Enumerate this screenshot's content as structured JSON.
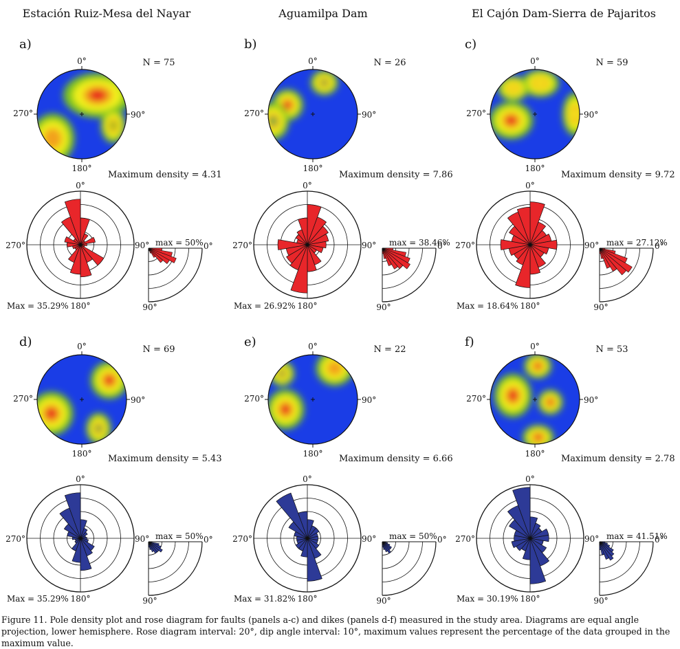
{
  "column_titles": [
    "Estación Ruiz-Mesa del Nayar",
    "Aguamilpa Dam",
    "El Cajón Dam-Sierra de Pajaritos"
  ],
  "caption": "Figure 11. Pole density plot and rose diagram for faults (panels a-c) and dikes (panels d-f) measured in the study area. Diagrams are equal angle projection, lower hemisphere. Rose diagram interval: 20°, dip angle interval: 10°, maximum values represent the percentage of the data grouped in the maximum value.",
  "colors": {
    "fault_rose": "#e8262a",
    "dike_rose": "#2d3a97",
    "density_low": "#1a3de6",
    "density_mid": "#7ac41e",
    "density_high": "#f2f21a",
    "density_max": "#e81c1c"
  },
  "direction_labels": {
    "n": "0°",
    "e": "90°",
    "s": "180°",
    "w": "270°"
  },
  "panels": [
    {
      "label": "a)",
      "n": "N = 75",
      "max_density": "Maximum density = 4.31",
      "rose_max": "Max = 35.29%",
      "dip_max": "max = 50%",
      "kind": "fault",
      "blobs": [
        [
          40,
          -0.55,
          0.55,
          0.36,
          "#e81c1c"
        ],
        [
          -130,
          -0.85,
          0.35,
          0.4,
          "#f2a21a"
        ],
        [
          110,
          -0.75,
          0.2,
          0.28,
          "#7ac41e"
        ]
      ],
      "rose": [
        0.5,
        0.22,
        0.1,
        0.28,
        0.12,
        0.08,
        0.5,
        0.35,
        0.6,
        0.55,
        0.35,
        0.12,
        0.15,
        0.25,
        0.3,
        0.15,
        0.55,
        0.85
      ],
      "dips": [
        0.25,
        0.45,
        0.55,
        0.45,
        0.35,
        0.2,
        0.1,
        0.05,
        0.02
      ]
    },
    {
      "label": "b)",
      "n": "N = 26",
      "max_density": "Maximum density = 7.86",
      "rose_max": "Max = 26.92%",
      "dip_max": "max = 38.46%",
      "kind": "fault",
      "blobs": [
        [
          -70,
          -0.6,
          0.25,
          0.25,
          "#e81c1c"
        ],
        [
          20,
          -0.75,
          0.22,
          0.2,
          "#3cb43c"
        ],
        [
          -100,
          -0.9,
          0.25,
          0.3,
          "#3cb43c"
        ]
      ],
      "rose": [
        0.75,
        0.55,
        0.45,
        0.4,
        0.35,
        0.3,
        0.2,
        0.4,
        0.5,
        0.9,
        0.5,
        0.45,
        0.4,
        0.55,
        0.2,
        0.25,
        0.3,
        0.5
      ],
      "dips": [
        0.2,
        0.45,
        0.55,
        0.6,
        0.5,
        0.45,
        0.35,
        0.2,
        0.1
      ]
    },
    {
      "label": "c)",
      "n": "N = 59",
      "max_density": "Maximum density = 9.72",
      "rose_max": "Max = 18.64%",
      "dip_max": "max = 27.12%",
      "kind": "fault",
      "blobs": [
        [
          -105,
          -0.55,
          0.35,
          0.3,
          "#e81c1c"
        ],
        [
          90,
          -0.9,
          0.2,
          0.35,
          "#f2f21a"
        ],
        [
          10,
          -0.7,
          0.3,
          0.22,
          "#f2f21a"
        ],
        [
          -40,
          -0.75,
          0.25,
          0.2,
          "#f2f21a"
        ]
      ],
      "rose": [
        0.8,
        0.45,
        0.35,
        0.4,
        0.5,
        0.35,
        0.3,
        0.45,
        0.55,
        0.8,
        0.4,
        0.35,
        0.4,
        0.55,
        0.35,
        0.45,
        0.65,
        0.7
      ],
      "dips": [
        0.1,
        0.3,
        0.55,
        0.7,
        0.65,
        0.5,
        0.4,
        0.2,
        0.1
      ]
    },
    {
      "label": "d)",
      "n": "N = 69",
      "max_density": "Maximum density = 5.43",
      "rose_max": "Max = 35.29%",
      "dip_max": "max = 50%",
      "kind": "dike",
      "blobs": [
        [
          55,
          -0.75,
          0.3,
          0.3,
          "#e81c1c"
        ],
        [
          -115,
          -0.75,
          0.35,
          0.35,
          "#e81c1c"
        ],
        [
          150,
          -0.75,
          0.2,
          0.25,
          "#3cb43c"
        ]
      ],
      "rose": [
        0.35,
        0.2,
        0.15,
        0.1,
        0.12,
        0.15,
        0.3,
        0.35,
        0.6,
        0.45,
        0.25,
        0.12,
        0.1,
        0.15,
        0.25,
        0.35,
        0.6,
        0.85
      ],
      "dips": [
        0.05,
        0.2,
        0.25,
        0.3,
        0.25,
        0.25,
        0.2,
        0.15,
        0.1
      ]
    },
    {
      "label": "e)",
      "n": "N = 22",
      "max_density": "Maximum density = 6.66",
      "rose_max": "Max = 31.82%",
      "dip_max": "max = 50%",
      "kind": "dike",
      "blobs": [
        [
          35,
          -0.85,
          0.3,
          0.28,
          "#f2a21a"
        ],
        [
          -110,
          -0.65,
          0.3,
          0.32,
          "#e81c1c"
        ],
        [
          -50,
          -0.9,
          0.2,
          0.2,
          "#3cb43c"
        ]
      ],
      "rose": [
        0.35,
        0.25,
        0.25,
        0.2,
        0.2,
        0.2,
        0.25,
        0.4,
        0.8,
        0.35,
        0.25,
        0.25,
        0.2,
        0.2,
        0.25,
        0.4,
        0.9,
        0.5
      ],
      "dips": [
        0.05,
        0.1,
        0.15,
        0.2,
        0.2,
        0.25,
        0.2,
        0.15,
        0.1
      ]
    },
    {
      "label": "f)",
      "n": "N = 53",
      "max_density": "Maximum density = 2.78",
      "rose_max": "Max = 30.19%",
      "dip_max": "max = 41.51%",
      "kind": "dike",
      "blobs": [
        [
          5,
          -0.75,
          0.22,
          0.2,
          "#e81c1c"
        ],
        [
          -80,
          -0.5,
          0.3,
          0.35,
          "#e81c1c"
        ],
        [
          100,
          -0.35,
          0.2,
          0.2,
          "#e81c1c"
        ],
        [
          175,
          -0.85,
          0.25,
          0.2,
          "#e81c1c"
        ]
      ],
      "rose": [
        0.4,
        0.3,
        0.25,
        0.35,
        0.35,
        0.25,
        0.35,
        0.55,
        0.85,
        0.4,
        0.25,
        0.3,
        0.35,
        0.3,
        0.3,
        0.45,
        0.65,
        0.95
      ],
      "dips": [
        0.1,
        0.15,
        0.2,
        0.3,
        0.35,
        0.4,
        0.35,
        0.25,
        0.15
      ]
    }
  ]
}
